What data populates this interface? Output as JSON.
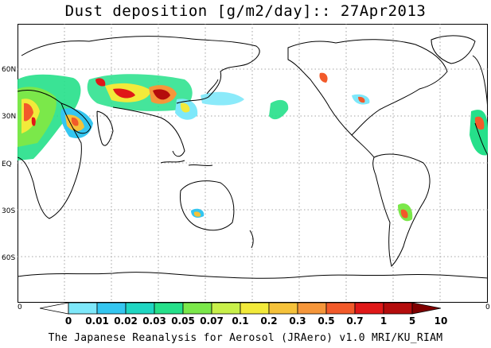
{
  "title": "Dust deposition [g/m2/day]:: 27Apr2013",
  "latitude_labels": [
    "60N",
    "30N",
    "EQ",
    "30S",
    "60S"
  ],
  "scale_left_value": "0",
  "scale_right_value": "0",
  "colorbar": {
    "labels": [
      "0",
      "0.01",
      "0.02",
      "0.03",
      "0.05",
      "0.07",
      "0.1",
      "0.2",
      "0.3",
      "0.5",
      "0.7",
      "1",
      "5",
      "10"
    ],
    "colors": [
      "#ffffff",
      "#7ee8fa",
      "#34c6f0",
      "#1fd6c2",
      "#25e08a",
      "#7be84a",
      "#c8f04a",
      "#f2ea3a",
      "#f5c23a",
      "#f5963a",
      "#f25a2a",
      "#e01818",
      "#b40c0c",
      "#800000"
    ]
  },
  "credit": "The Japanese Reanalysis for Aerosol (JRAero) v1.0 MRI/KU_RIAM",
  "icons": {
    "colorbar_left_arrow": "triangle-left-icon",
    "colorbar_right_arrow": "triangle-right-icon"
  }
}
